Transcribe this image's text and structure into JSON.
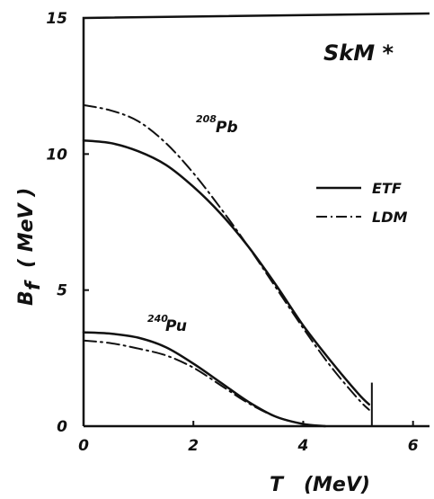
{
  "chart_data": {
    "type": "line",
    "title": "SkM *",
    "xlabel": "T   (MeV)",
    "ylabel_main": "B",
    "ylabel_sub": "f",
    "ylabel_unit": "( MeV )",
    "xlim": [
      0,
      6.3
    ],
    "ylim": [
      0,
      15
    ],
    "x_ticks": [
      0,
      2,
      4,
      6
    ],
    "y_ticks": [
      0,
      5,
      10,
      15
    ],
    "x_tick_labels": [
      "0",
      "2",
      "4",
      "6"
    ],
    "y_tick_labels": [
      "0",
      "5",
      "10",
      "15"
    ],
    "grid": false,
    "legend": {
      "position": "right",
      "entries": [
        {
          "label": "ETF",
          "style": "solid"
        },
        {
          "label": "LDM",
          "style": "dash-dot"
        }
      ]
    },
    "annotations": [
      {
        "id": "pb",
        "mass": "208",
        "element": "Pb",
        "x": 2.35,
        "y": 11.9
      },
      {
        "id": "pu",
        "mass": "240",
        "element": "Pu",
        "x": 1.45,
        "y": 4.2
      }
    ],
    "vertical_line": {
      "x": 5.25,
      "y_top": 1.6
    },
    "series": [
      {
        "name": "ETF",
        "nucleus": "208Pb",
        "style": "solid",
        "x": [
          0,
          0.5,
          1.0,
          1.5,
          2.0,
          2.5,
          3.0,
          3.5,
          4.0,
          4.5,
          5.0,
          5.2
        ],
        "y": [
          10.5,
          10.4,
          10.1,
          9.6,
          8.8,
          7.8,
          6.6,
          5.2,
          3.7,
          2.4,
          1.2,
          0.8
        ]
      },
      {
        "name": "LDM",
        "nucleus": "208Pb",
        "style": "dash-dot",
        "x": [
          0,
          0.5,
          1.0,
          1.5,
          2.0,
          2.5,
          3.0,
          3.5,
          4.0,
          4.5,
          5.0,
          5.2
        ],
        "y": [
          11.8,
          11.6,
          11.2,
          10.4,
          9.3,
          8.0,
          6.6,
          5.1,
          3.6,
          2.2,
          1.0,
          0.6
        ]
      },
      {
        "name": "ETF",
        "nucleus": "240Pu",
        "style": "solid",
        "x": [
          0,
          0.5,
          1.0,
          1.5,
          2.0,
          2.5,
          3.0,
          3.5,
          4.0,
          4.4
        ],
        "y": [
          3.45,
          3.4,
          3.25,
          2.9,
          2.3,
          1.6,
          0.9,
          0.35,
          0.08,
          0
        ]
      },
      {
        "name": "LDM",
        "nucleus": "240Pu",
        "style": "dash-dot",
        "x": [
          0,
          0.5,
          1.0,
          1.5,
          2.0,
          2.5,
          3.0,
          3.5,
          4.0,
          4.4
        ],
        "y": [
          3.15,
          3.05,
          2.85,
          2.6,
          2.15,
          1.5,
          0.85,
          0.35,
          0.08,
          0
        ]
      }
    ]
  }
}
